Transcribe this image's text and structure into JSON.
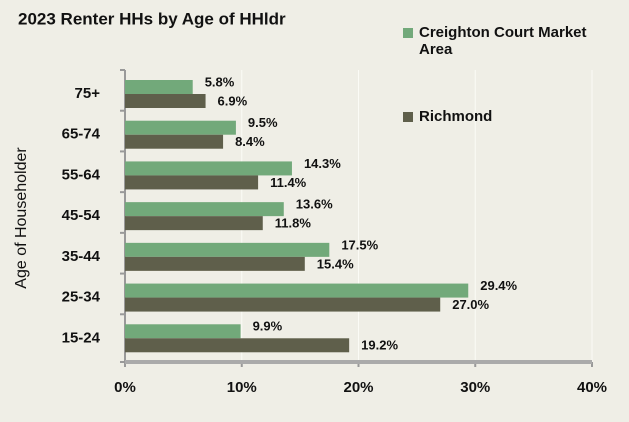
{
  "chart_data": {
    "type": "bar",
    "orientation": "horizontal",
    "title": "2023 Renter HHs by Age of HHldr",
    "y_label": "Age of Householder",
    "categories": [
      "75+",
      "65-74",
      "55-64",
      "45-54",
      "35-44",
      "25-34",
      "15-24"
    ],
    "series": [
      {
        "name": "Creighton Court Market Area",
        "color": "#72a97a",
        "values": [
          5.8,
          9.5,
          14.3,
          13.6,
          17.5,
          29.4,
          9.9
        ],
        "value_labels": [
          "5.8%",
          "9.5%",
          "14.3%",
          "13.6%",
          "17.5%",
          "29.4%",
          "9.9%"
        ]
      },
      {
        "name": "Richmond",
        "color": "#5f5f4b",
        "values": [
          6.9,
          8.4,
          11.4,
          11.8,
          15.4,
          27.0,
          19.2
        ],
        "value_labels": [
          "6.9%",
          "8.4%",
          "11.4%",
          "11.8%",
          "15.4%",
          "27.0%",
          "19.2%"
        ]
      }
    ],
    "xlim": [
      0,
      40
    ],
    "xticks": [
      {
        "value": 0,
        "label": "0%"
      },
      {
        "value": 10,
        "label": "10%"
      },
      {
        "value": 20,
        "label": "20%"
      },
      {
        "value": 30,
        "label": "30%"
      },
      {
        "value": 40,
        "label": "40%"
      }
    ],
    "grid": true
  }
}
